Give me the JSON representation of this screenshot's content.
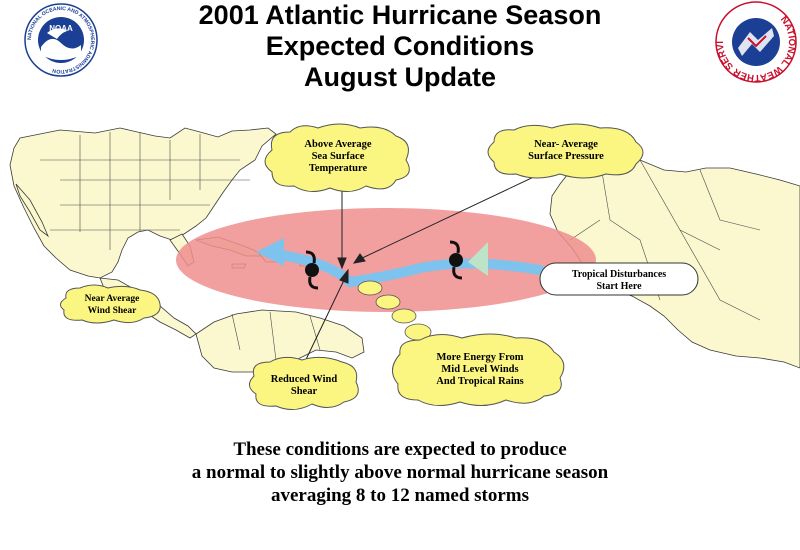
{
  "title": {
    "line1": "2001 Atlantic Hurricane Season",
    "line2": "Expected Conditions",
    "line3": "August Update"
  },
  "logos": {
    "noaa_text": "NOAA",
    "noaa_ring_text": "NATIONAL OCEANIC AND ATMOSPHERIC ADMINISTRATION",
    "nws_ring_text": "NATIONAL WEATHER SERVICE"
  },
  "callouts": {
    "sst": [
      "Above Average",
      "Sea Surface",
      "Temperature"
    ],
    "pressure": [
      "Near- Average",
      "Surface Pressure"
    ],
    "wind_shear": [
      "Near Average",
      "Wind Shear"
    ],
    "reduced_shear": [
      "Reduced Wind",
      "Shear"
    ],
    "energy": [
      "More Energy From",
      "Mid Level Winds",
      "And Tropical Rains"
    ],
    "disturbances": [
      "Tropical Disturbances",
      "Start Here"
    ]
  },
  "caption": {
    "line1": "These conditions are expected to produce",
    "line2": "a normal to slightly above normal hurricane season",
    "line3": "averaging 8 to 12 named storms"
  },
  "colors": {
    "land": "#fbf8cf",
    "border": "#3a3a3a",
    "zone": "#ef8e8e",
    "track": "#7ec3ee",
    "cloud": "#fbf582",
    "noaa_blue": "#1b3f95",
    "nws_red": "#c8102e"
  }
}
